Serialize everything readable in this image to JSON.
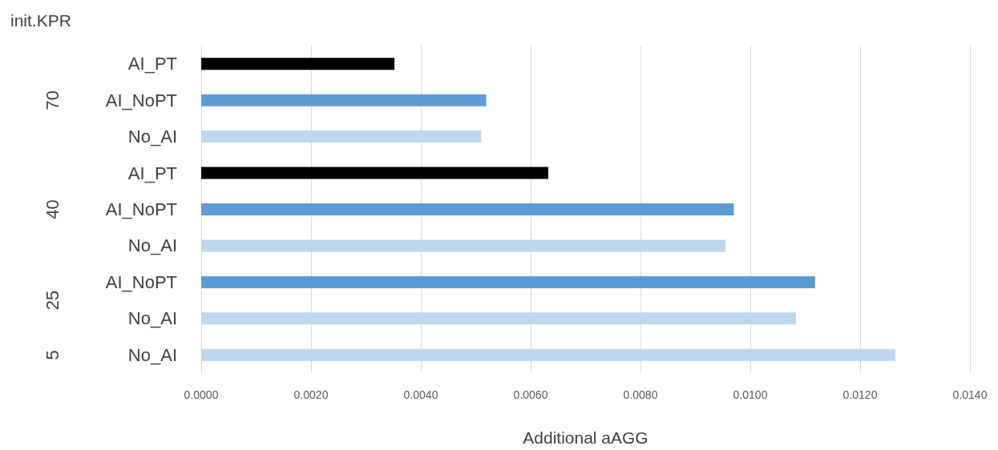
{
  "chart_data": {
    "type": "bar",
    "orientation": "horizontal",
    "ylabel": "init.KPR",
    "xlabel": "Additional aAGG",
    "categories": [
      "AI_PT",
      "AI_NoPT",
      "No_AI",
      "AI_PT",
      "AI_NoPT",
      "No_AI",
      "AI_NoPT",
      "No_AI",
      "No_AI"
    ],
    "values": [
      0.00352,
      0.00519,
      0.0051,
      0.00632,
      0.0097,
      0.00955,
      0.01118,
      0.01083,
      0.01264
    ],
    "colors": [
      "#000000",
      "#5b9bd5",
      "#bdd7ee",
      "#000000",
      "#5b9bd5",
      "#bdd7ee",
      "#5b9bd5",
      "#bdd7ee",
      "#bdd7ee"
    ],
    "annotations": [
      "70",
      "40",
      "25",
      "5"
    ],
    "xlim": [
      0,
      0.014
    ],
    "xticks": [
      {
        "value": 0,
        "label": "0.0000"
      },
      {
        "value": 0.002,
        "label": "0.0020"
      },
      {
        "value": 0.004,
        "label": "0.0040"
      },
      {
        "value": 0.006,
        "label": "0.0060"
      },
      {
        "value": 0.008,
        "label": "0.0080"
      },
      {
        "value": 0.01,
        "label": "0.0100"
      },
      {
        "value": 0.012,
        "label": "0.0120"
      },
      {
        "value": 0.014,
        "label": "0.0140"
      }
    ],
    "grid": "x"
  }
}
